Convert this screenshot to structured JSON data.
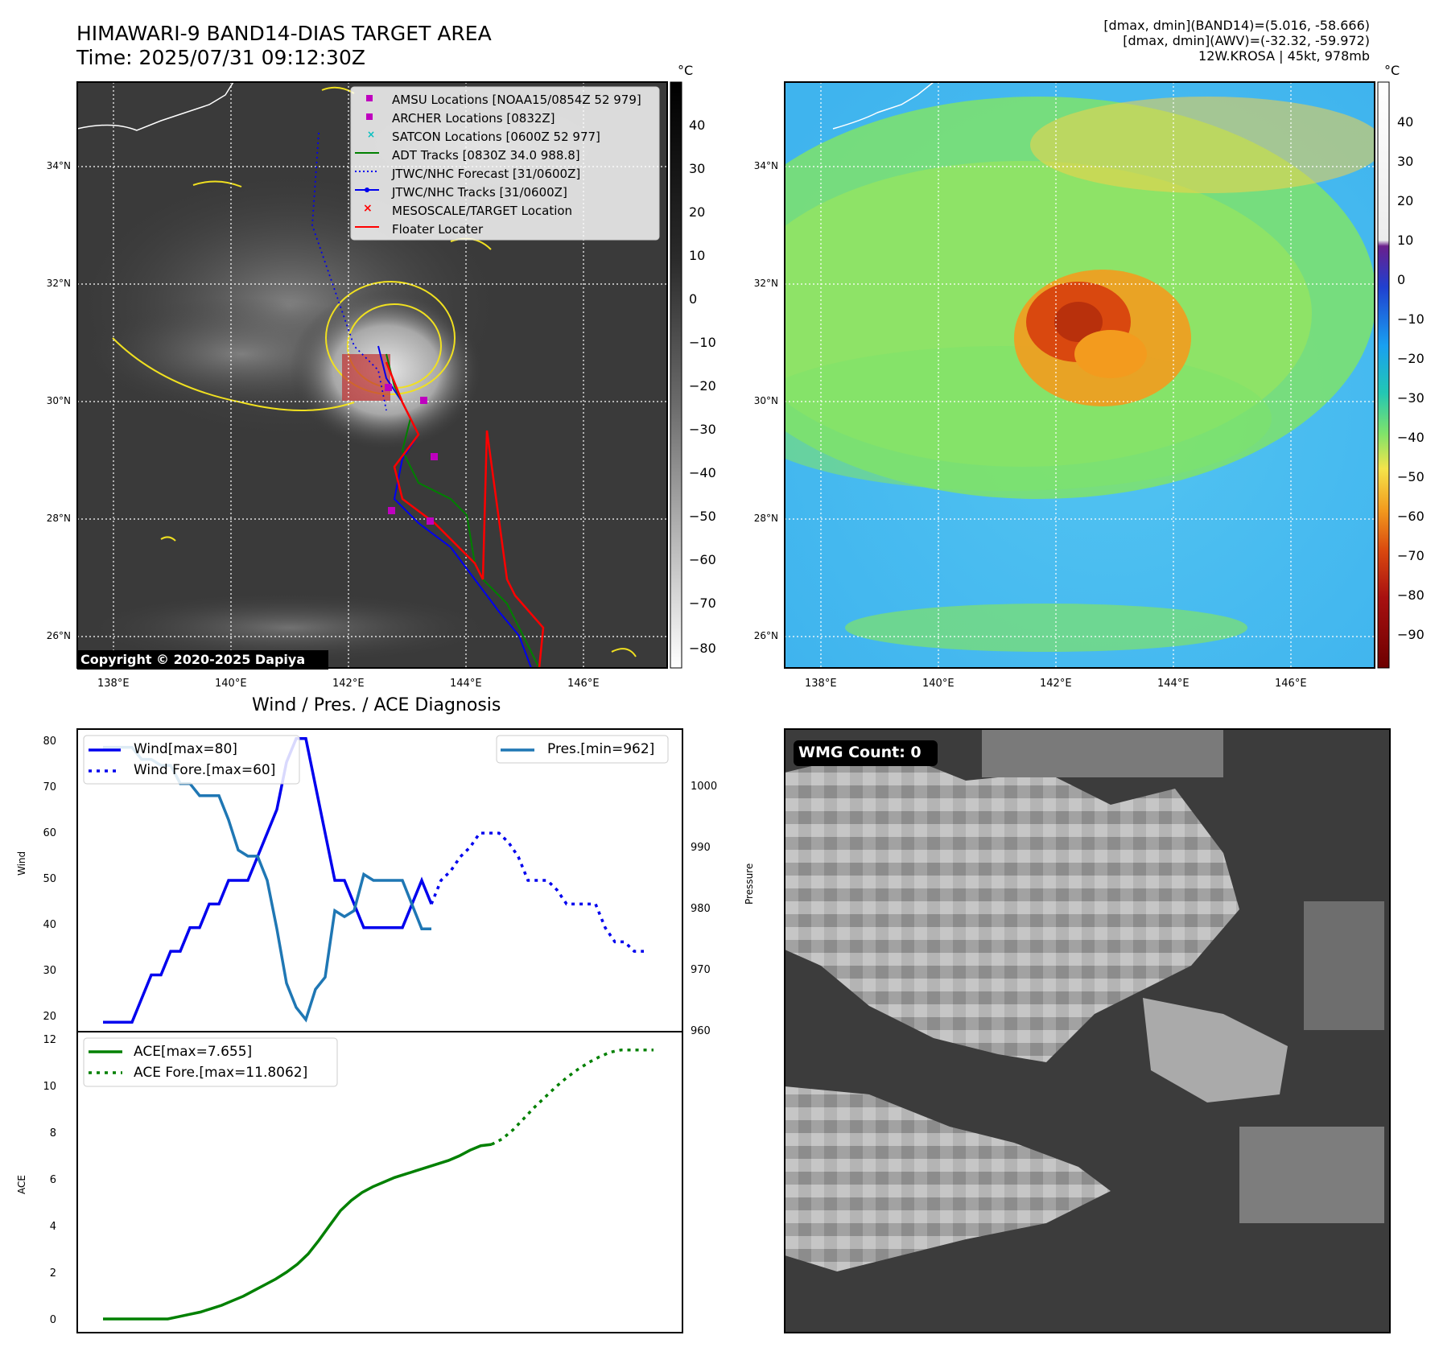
{
  "header": {
    "title": "HIMAWARI-9 BAND14-DIAS TARGET AREA",
    "time": "Time: 2025/07/31 09:12:30Z",
    "info_lines": [
      "[dmax, dmin](BAND14)=(5.016, -58.666)",
      "[dmax, dmin](AWV)=(-32.32, -59.972)",
      "12W.KROSA | 45kt, 978mb"
    ]
  },
  "map": {
    "lat_labels": [
      "34°N",
      "32°N",
      "30°N",
      "28°N",
      "26°N"
    ],
    "lon_labels": [
      "138°E",
      "140°E",
      "142°E",
      "144°E",
      "146°E"
    ],
    "lat_values": [
      34,
      32,
      30,
      28,
      26
    ],
    "lon_values": [
      138,
      140,
      142,
      144,
      146
    ],
    "copyright": "Copyright © 2020-2025 Dapiya",
    "legend": [
      {
        "label": "AMSU Locations [NOAA15/0854Z 52 979]",
        "marker": "square",
        "color": "#bf00bf"
      },
      {
        "label": "ARCHER Locations [0832Z]",
        "marker": "square",
        "color": "#bf00bf"
      },
      {
        "label": "SATCON Locations [0600Z 52 977]",
        "marker": "x",
        "color": "#00bfbf"
      },
      {
        "label": "ADT Tracks [0830Z 34.0 988.8]",
        "marker": "line",
        "color": "#008000"
      },
      {
        "label": "JTWC/NHC Forecast [31/0600Z]",
        "marker": "dotted",
        "color": "#0000ff"
      },
      {
        "label": "JTWC/NHC Tracks [31/0600Z]",
        "marker": "line-dot",
        "color": "#0000ff"
      },
      {
        "label": "MESOSCALE/TARGET Location",
        "marker": "x",
        "color": "#ff0000"
      },
      {
        "label": "Floater Locater",
        "marker": "line",
        "color": "#ff0000"
      }
    ]
  },
  "colorbars": {
    "unit": "°C",
    "left_ticks": [
      "40",
      "30",
      "20",
      "10",
      "0",
      "−10",
      "−20",
      "−30",
      "−40",
      "−50",
      "−60",
      "−70",
      "−80"
    ],
    "right_ticks": [
      "40",
      "30",
      "20",
      "10",
      "0",
      "−10",
      "−20",
      "−30",
      "−40",
      "−50",
      "−60",
      "−70",
      "−80",
      "−90"
    ]
  },
  "diagnosis": {
    "title": "Wind / Pres. / ACE Diagnosis",
    "wind_ylabel": "Wind",
    "pres_ylabel": "Pressure",
    "ace_ylabel": "ACE",
    "wind_ticks": [
      "80",
      "70",
      "60",
      "50",
      "40",
      "30",
      "20"
    ],
    "pres_ticks": [
      "1000",
      "990",
      "980",
      "970",
      "960"
    ],
    "ace_ticks": [
      "12",
      "10",
      "8",
      "6",
      "4",
      "2",
      "0"
    ],
    "legend_wind": "Wind[max=80]",
    "legend_wind_fore": "Wind Fore.[max=60]",
    "legend_pres": "Pres.[min=962]",
    "legend_ace": "ACE[max=7.655]",
    "legend_ace_fore": "ACE Fore.[max=11.8062]"
  },
  "wmg": {
    "label": "WMG Count: 0"
  },
  "chart_data": [
    {
      "type": "line",
      "title": "Wind / Pres. / ACE Diagnosis",
      "ylabel": "Wind",
      "ylim": [
        18,
        82
      ],
      "series": [
        {
          "name": "Wind[max=80]",
          "color": "#0000ee",
          "style": "solid",
          "values": [
            20,
            20,
            20,
            20,
            25,
            30,
            30,
            35,
            35,
            40,
            40,
            45,
            45,
            50,
            50,
            50,
            55,
            60,
            65,
            75,
            80,
            80,
            70,
            60,
            50,
            50,
            45,
            40,
            40,
            40,
            40,
            40,
            45,
            50,
            45
          ]
        },
        {
          "name": "Wind Fore.[max=60]",
          "color": "#0000ee",
          "style": "dotted",
          "values": [
            45,
            50,
            52,
            55,
            57,
            60,
            60,
            60,
            58,
            55,
            50,
            50,
            50,
            48,
            45,
            45,
            45,
            45,
            40,
            37,
            37,
            35,
            35
          ]
        }
      ]
    },
    {
      "type": "line",
      "ylabel": "Pressure",
      "ylim": [
        960,
        1010
      ],
      "series": [
        {
          "name": "Pres.[min=962]",
          "color": "#1f77b4",
          "style": "solid",
          "values": [
            1007,
            1007,
            1007,
            1007,
            1005,
            1005,
            1004,
            1004,
            1001,
            1001,
            999,
            999,
            999,
            995,
            990,
            989,
            989,
            985,
            977,
            968,
            964,
            962,
            967,
            969,
            980,
            979,
            980,
            986,
            985,
            985,
            985,
            985,
            981,
            977,
            977
          ]
        }
      ]
    },
    {
      "type": "line",
      "ylabel": "ACE",
      "ylim": [
        -0.6,
        12.6
      ],
      "series": [
        {
          "name": "ACE[max=7.655]",
          "color": "#008000",
          "style": "solid",
          "values": [
            0,
            0,
            0,
            0,
            0,
            0,
            0,
            0.1,
            0.2,
            0.3,
            0.45,
            0.6,
            0.8,
            1.0,
            1.25,
            1.5,
            1.75,
            2.05,
            2.4,
            2.85,
            3.45,
            4.1,
            4.75,
            5.2,
            5.55,
            5.8,
            6.0,
            6.2,
            6.35,
            6.5,
            6.65,
            6.8,
            6.95,
            7.15,
            7.4,
            7.6,
            7.655
          ]
        },
        {
          "name": "ACE Fore.[max=11.8062]",
          "color": "#008000",
          "style": "dotted",
          "values": [
            7.655,
            7.9,
            8.3,
            8.8,
            9.3,
            9.75,
            10.2,
            10.6,
            10.95,
            11.25,
            11.5,
            11.7,
            11.8,
            11.8,
            11.8,
            11.8
          ]
        }
      ]
    }
  ]
}
